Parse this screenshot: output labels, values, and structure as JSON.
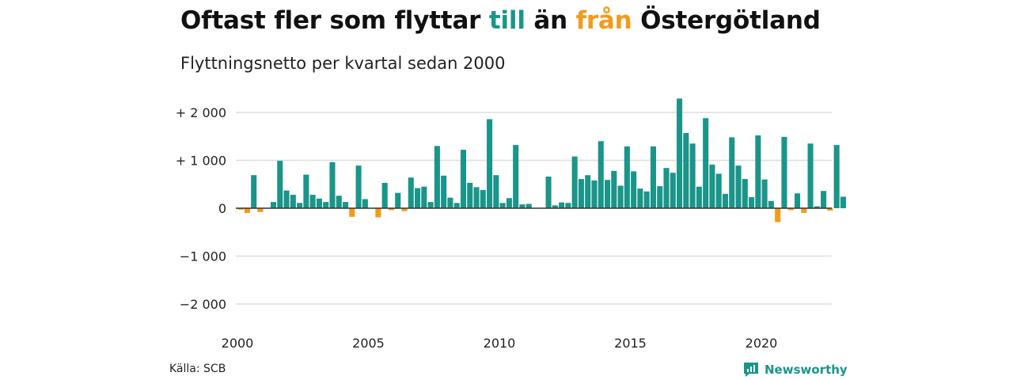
{
  "title": {
    "part1": "Oftast fler som flyttar ",
    "highlight_pos": "till",
    "part2": " än ",
    "highlight_neg": "från",
    "part3": " Östergötland"
  },
  "subtitle": "Flyttningsnetto per kvartal sedan 2000",
  "source": "Källa: SCB",
  "brand": "Newsworthy",
  "colors": {
    "positive": "#1a9589",
    "negative": "#f29b1b",
    "grid": "#dddddd",
    "baseline": "#333333"
  },
  "chart_data": {
    "type": "bar",
    "title": "Oftast fler som flyttar till än från Östergötland",
    "subtitle": "Flyttningsnetto per kvartal sedan 2000",
    "ylim": [
      -2100,
      2300
    ],
    "yticks": [
      {
        "value": 2000,
        "label": "+ 2 000"
      },
      {
        "value": 1000,
        "label": "+ 1 000"
      },
      {
        "value": 0,
        "label": "0"
      },
      {
        "value": -1000,
        "label": "−1 000"
      },
      {
        "value": -2000,
        "label": "−2 000"
      }
    ],
    "xticks": [
      {
        "year": 2000,
        "label": "2000"
      },
      {
        "year": 2005,
        "label": "2005"
      },
      {
        "year": 2010,
        "label": "2010"
      },
      {
        "year": 2015,
        "label": "2015"
      },
      {
        "year": 2020,
        "label": "2020"
      }
    ],
    "grid": true,
    "start_year": 2000,
    "values": [
      -30,
      -100,
      690,
      -80,
      -10,
      130,
      990,
      370,
      280,
      110,
      700,
      280,
      200,
      130,
      960,
      260,
      130,
      -180,
      890,
      190,
      -10,
      -190,
      530,
      -40,
      320,
      -60,
      640,
      420,
      450,
      130,
      1300,
      680,
      220,
      110,
      1220,
      530,
      440,
      380,
      1860,
      690,
      110,
      210,
      1320,
      80,
      90,
      0,
      0,
      660,
      60,
      120,
      110,
      1080,
      610,
      690,
      580,
      1400,
      590,
      780,
      470,
      1290,
      770,
      410,
      350,
      1290,
      460,
      840,
      740,
      2290,
      1570,
      1350,
      450,
      1880,
      910,
      720,
      300,
      1480,
      890,
      610,
      230,
      1520,
      600,
      150,
      -290,
      1490,
      -40,
      310,
      -100,
      1350,
      40,
      360,
      -50,
      1320,
      240
    ]
  }
}
